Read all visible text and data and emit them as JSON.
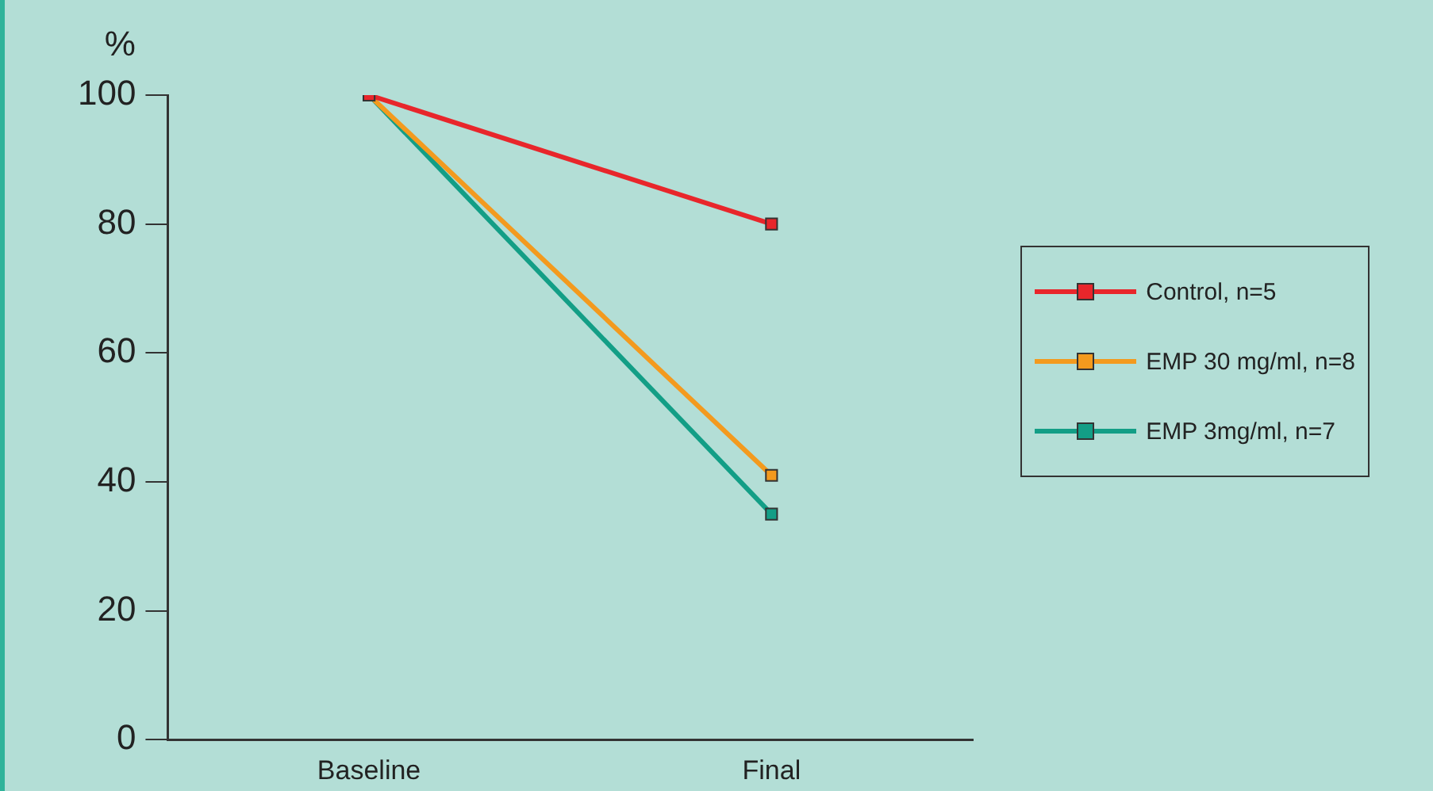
{
  "chart_data": {
    "type": "line",
    "ylabel": "%",
    "categories": [
      "Baseline",
      "Final"
    ],
    "series": [
      {
        "name": "Control, n=5",
        "color": "#e8262b",
        "values": [
          100,
          80
        ]
      },
      {
        "name": "EMP 30 mg/ml, n=8",
        "color": "#f39a1e",
        "values": [
          100,
          41
        ]
      },
      {
        "name": "EMP 3mg/ml, n=7",
        "color": "#139e86",
        "values": [
          100,
          35
        ]
      }
    ],
    "ylim": [
      0,
      100
    ],
    "yticks": [
      0,
      20,
      40,
      60,
      80,
      100
    ],
    "grid": false,
    "legend": "right",
    "marker": "square",
    "line_style": "solid"
  }
}
